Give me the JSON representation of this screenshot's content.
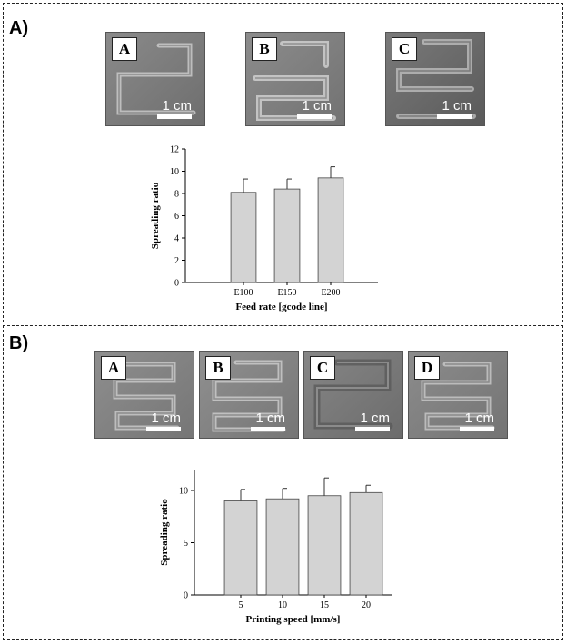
{
  "panel_a": {
    "label": "A)",
    "photos": [
      {
        "tag": "A",
        "scale_text": "1 cm"
      },
      {
        "tag": "B",
        "scale_text": "1 cm"
      },
      {
        "tag": "C",
        "scale_text": "1 cm"
      }
    ]
  },
  "panel_b": {
    "label": "B)",
    "photos": [
      {
        "tag": "A",
        "scale_text": "1 cm"
      },
      {
        "tag": "B",
        "scale_text": "1 cm"
      },
      {
        "tag": "C",
        "scale_text": "1 cm"
      },
      {
        "tag": "D",
        "scale_text": "1 cm"
      }
    ]
  },
  "chart_data": [
    {
      "type": "bar",
      "categories": [
        "E100",
        "E150",
        "E200"
      ],
      "values": [
        8.1,
        8.4,
        9.4
      ],
      "errors": [
        1.2,
        0.9,
        1.0
      ],
      "xlabel": "Feed rate [gcode line]",
      "ylabel": "Spreading ratio",
      "ylim": [
        0,
        12
      ],
      "yticks": [
        0,
        2,
        4,
        6,
        8,
        10,
        12
      ],
      "grid": false,
      "bar_color": "#d3d3d3"
    },
    {
      "type": "bar",
      "categories": [
        "5",
        "10",
        "15",
        "20"
      ],
      "values": [
        9.0,
        9.2,
        9.5,
        9.8
      ],
      "errors": [
        1.1,
        1.0,
        1.7,
        0.7
      ],
      "xlabel": "Printing speed [mm/s]",
      "ylabel": "Spreading ratio",
      "ylim": [
        0,
        12
      ],
      "yticks": [
        0,
        5,
        10
      ],
      "grid": false,
      "bar_color": "#d3d3d3"
    }
  ]
}
